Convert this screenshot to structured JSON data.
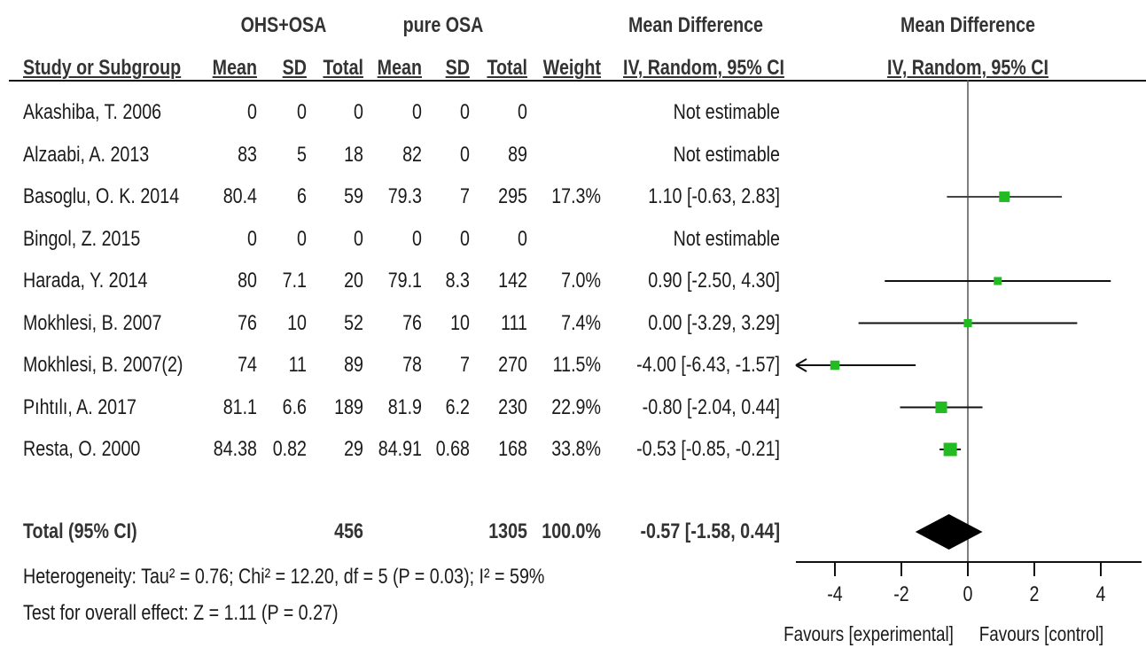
{
  "header": {
    "group_experimental": "OHS+OSA",
    "group_control": "pure OSA",
    "effect_header_table": "Mean Difference",
    "effect_header_plot": "Mean Difference",
    "col_study": "Study or Subgroup",
    "col_mean_e": "Mean",
    "col_sd_e": "SD",
    "col_total_e": "Total",
    "col_mean_c": "Mean",
    "col_sd_c": "SD",
    "col_total_c": "Total",
    "col_weight": "Weight",
    "col_ci": "IV, Random, 95% CI",
    "plot_ci_label": "IV, Random, 95% CI"
  },
  "total_row": {
    "label": "Total (95% CI)",
    "total_e": "456",
    "total_c": "1305",
    "weight": "100.0%",
    "ci_text": "-0.57 [-1.58, 0.44]"
  },
  "footer": {
    "heterogeneity": "Heterogeneity: Tau² = 0.76; Chi² = 12.20, df = 5 (P = 0.03); I² = 59%",
    "overall": "Test for overall effect: Z = 1.11 (P = 0.27)",
    "favours_left": "Favours [experimental]",
    "favours_right": "Favours [control]"
  },
  "chart_data": {
    "type": "forest",
    "xlim": [
      -5.2,
      5.2
    ],
    "ticks": [
      -4,
      -2,
      0,
      2,
      4
    ],
    "tick_labels": [
      "-4",
      "-2",
      "0",
      "2",
      "4"
    ],
    "studies": [
      {
        "study": "Akashiba, T. 2006",
        "mean_e": "0",
        "sd_e": "0",
        "total_e": "0",
        "mean_c": "0",
        "sd_c": "0",
        "total_c": "0",
        "weight": "",
        "ci_text": "Not estimable",
        "md": null,
        "lo": null,
        "hi": null,
        "w": null
      },
      {
        "study": "Alzaabi, A. 2013",
        "mean_e": "83",
        "sd_e": "5",
        "total_e": "18",
        "mean_c": "82",
        "sd_c": "0",
        "total_c": "89",
        "weight": "",
        "ci_text": "Not estimable",
        "md": null,
        "lo": null,
        "hi": null,
        "w": null
      },
      {
        "study": "Basoglu, O. K. 2014",
        "mean_e": "80.4",
        "sd_e": "6",
        "total_e": "59",
        "mean_c": "79.3",
        "sd_c": "7",
        "total_c": "295",
        "weight": "17.3%",
        "ci_text": "1.10 [-0.63, 2.83]",
        "md": 1.1,
        "lo": -0.63,
        "hi": 2.83,
        "w": 17.3
      },
      {
        "study": "Bingol, Z. 2015",
        "mean_e": "0",
        "sd_e": "0",
        "total_e": "0",
        "mean_c": "0",
        "sd_c": "0",
        "total_c": "0",
        "weight": "",
        "ci_text": "Not estimable",
        "md": null,
        "lo": null,
        "hi": null,
        "w": null
      },
      {
        "study": "Harada, Y. 2014",
        "mean_e": "80",
        "sd_e": "7.1",
        "total_e": "20",
        "mean_c": "79.1",
        "sd_c": "8.3",
        "total_c": "142",
        "weight": "7.0%",
        "ci_text": "0.90 [-2.50, 4.30]",
        "md": 0.9,
        "lo": -2.5,
        "hi": 4.3,
        "w": 7.0
      },
      {
        "study": "Mokhlesi, B. 2007",
        "mean_e": "76",
        "sd_e": "10",
        "total_e": "52",
        "mean_c": "76",
        "sd_c": "10",
        "total_c": "111",
        "weight": "7.4%",
        "ci_text": "0.00 [-3.29, 3.29]",
        "md": 0.0,
        "lo": -3.29,
        "hi": 3.29,
        "w": 7.4
      },
      {
        "study": "Mokhlesi, B. 2007(2)",
        "mean_e": "74",
        "sd_e": "11",
        "total_e": "89",
        "mean_c": "78",
        "sd_c": "7",
        "total_c": "270",
        "weight": "11.5%",
        "ci_text": "-4.00 [-6.43, -1.57]",
        "md": -4.0,
        "lo": -6.43,
        "hi": -1.57,
        "w": 11.5
      },
      {
        "study": "Pıhtılı, A. 2017",
        "mean_e": "81.1",
        "sd_e": "6.6",
        "total_e": "189",
        "mean_c": "81.9",
        "sd_c": "6.2",
        "total_c": "230",
        "weight": "22.9%",
        "ci_text": "-0.80 [-2.04, 0.44]",
        "md": -0.8,
        "lo": -2.04,
        "hi": 0.44,
        "w": 22.9
      },
      {
        "study": "Resta, O. 2000",
        "mean_e": "84.38",
        "sd_e": "0.82",
        "total_e": "29",
        "mean_c": "84.91",
        "sd_c": "0.68",
        "total_c": "168",
        "weight": "33.8%",
        "ci_text": "-0.53 [-0.85, -0.21]",
        "md": -0.53,
        "lo": -0.85,
        "hi": -0.21,
        "w": 33.8
      }
    ],
    "pooled": {
      "md": -0.57,
      "lo": -1.58,
      "hi": 0.44
    },
    "colors": {
      "square": "#22bb22",
      "line": "#111111",
      "diamond": "#000000"
    }
  }
}
